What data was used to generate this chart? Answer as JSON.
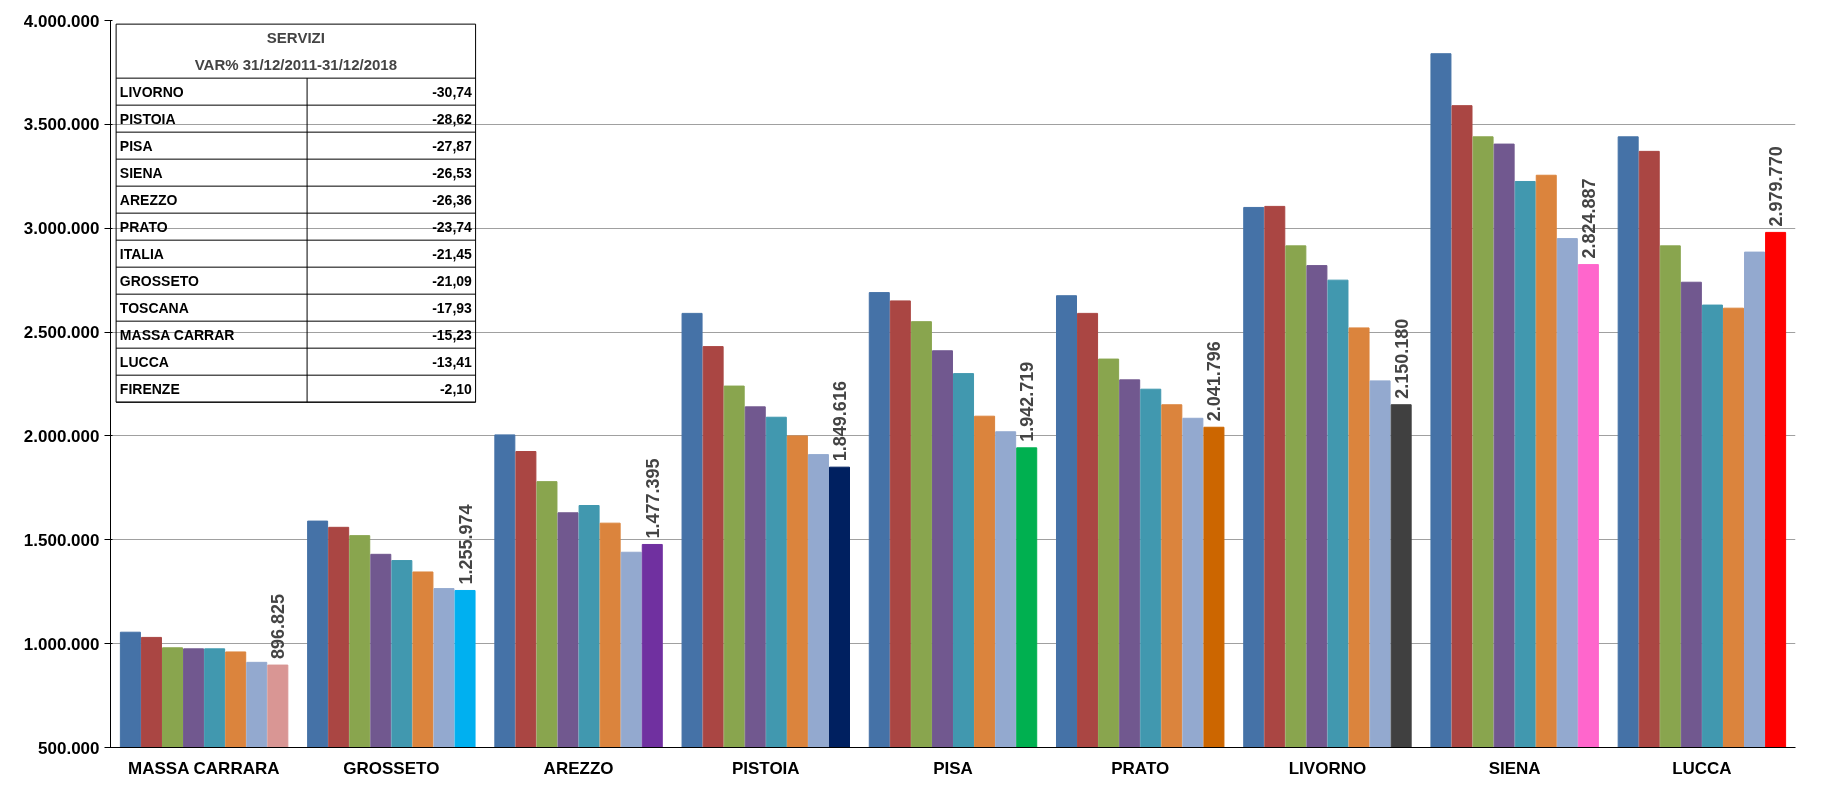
{
  "chart_data": {
    "type": "bar",
    "categories": [
      "MASSA CARRARA",
      "GROSSETO",
      "AREZZO",
      "PISTOIA",
      "PISA",
      "PRATO",
      "LIVORNO",
      "SIENA",
      "LUCCA"
    ],
    "series": [
      {
        "color": "#4572a7",
        "values": [
          1055000,
          1590000,
          2005000,
          2590000,
          2690000,
          2675000,
          3100000,
          3840000,
          3440000
        ]
      },
      {
        "color": "#aa4643",
        "values": [
          1030000,
          1560000,
          1925000,
          2430000,
          2650000,
          2590000,
          3105000,
          3590000,
          3370000
        ]
      },
      {
        "color": "#89a54e",
        "values": [
          980000,
          1520000,
          1780000,
          2240000,
          2550000,
          2370000,
          2915000,
          3440000,
          2915000
        ]
      },
      {
        "color": "#71588f",
        "values": [
          975000,
          1430000,
          1630000,
          2140000,
          2410000,
          2270000,
          2820000,
          3405000,
          2740000
        ]
      },
      {
        "color": "#4198af",
        "values": [
          975000,
          1400000,
          1665000,
          2090000,
          2300000,
          2225000,
          2750000,
          3225000,
          2630000
        ]
      },
      {
        "color": "#db843d",
        "values": [
          960000,
          1345000,
          1580000,
          2000000,
          2095000,
          2150000,
          2520000,
          3255000,
          2615000
        ]
      },
      {
        "color": "#93a9cf",
        "values": [
          910000,
          1265000,
          1440000,
          1910000,
          2020000,
          2085000,
          2265000,
          2950000,
          2885000
        ]
      },
      {
        "colors": [
          "#d99694",
          "#00b0f0",
          "#7030a0",
          "#002060",
          "#00b050",
          "#cc6600",
          "#404040",
          "#ff66cc",
          "#ff0000"
        ],
        "values": [
          896825,
          1255974,
          1477395,
          1849616,
          1942719,
          2041796,
          2150180,
          2824887,
          2979770
        ],
        "value_labels": [
          "896.825",
          "1.255.974",
          "1.477.395",
          "1.849.616",
          "1.942.719",
          "2.041.796",
          "2.150.180",
          "2.824.887",
          "2.979.770"
        ]
      }
    ],
    "ylim": [
      500000,
      4000000
    ],
    "yticks": [
      {
        "value": 500000,
        "label": "500.000"
      },
      {
        "value": 1000000,
        "label": "1.000.000"
      },
      {
        "value": 1500000,
        "label": "1.500.000"
      },
      {
        "value": 2000000,
        "label": "2.000.000"
      },
      {
        "value": 2500000,
        "label": "2.500.000"
      },
      {
        "value": 3000000,
        "label": "3.000.000"
      },
      {
        "value": 3500000,
        "label": "3.500.000"
      },
      {
        "value": 4000000,
        "label": "4.000.000"
      }
    ],
    "grid": "y",
    "annotations": [
      "SERVIZI",
      "VAR% 31/12/2011-31/12/2018",
      "LIVORNO",
      "-30,74",
      "PISTOIA",
      "-28,62",
      "PISA",
      "-27,87",
      "SIENA",
      "-26,53",
      "AREZZO",
      "-26,36",
      "PRATO",
      "-23,74",
      "ITALIA",
      "-21,45",
      "GROSSETO",
      "-21,09",
      "TOSCANA",
      "-17,93",
      "MASSA CARRAR",
      "-15,23",
      "LUCCA",
      "-13,41",
      "FIRENZE",
      "-2,10"
    ]
  }
}
